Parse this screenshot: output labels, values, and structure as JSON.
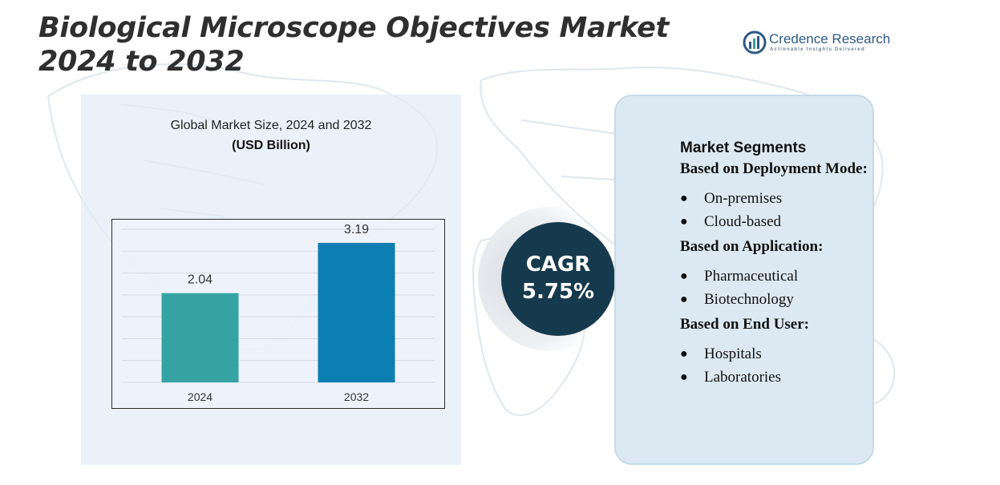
{
  "title": "Biological Microscope Objectives Market 2024 to 2032",
  "logo": {
    "name": "Credence Research",
    "tagline": "Actionable Insights Delivered",
    "color": "#2e5a86"
  },
  "chart_data": {
    "type": "bar",
    "title": "Global Market Size, 2024 and 2032",
    "unit_label": "(USD Billion)",
    "categories": [
      "2024",
      "2032"
    ],
    "values": [
      2.04,
      3.19
    ],
    "value_labels": [
      "2.04",
      "3.19"
    ],
    "colors": [
      "#36a3a3",
      "#0b7fb1"
    ],
    "ylim": [
      0,
      3.5
    ],
    "grid": true,
    "legend": "none"
  },
  "cagr": {
    "label": "CAGR",
    "value": "5.75%"
  },
  "segments": {
    "heading": "Market Segments",
    "groups": [
      {
        "title": "Based on Deployment Mode:",
        "items": [
          "On-premises",
          "Cloud-based"
        ]
      },
      {
        "title": "Based on Application:",
        "items": [
          "Pharmaceutical",
          "Biotechnology"
        ]
      },
      {
        "title": "Based on End User:",
        "items": [
          "Hospitals",
          "Laboratories"
        ]
      }
    ]
  },
  "icons": {
    "logo": "credence-logo-icon",
    "bullet": "bullet-dot-icon"
  }
}
